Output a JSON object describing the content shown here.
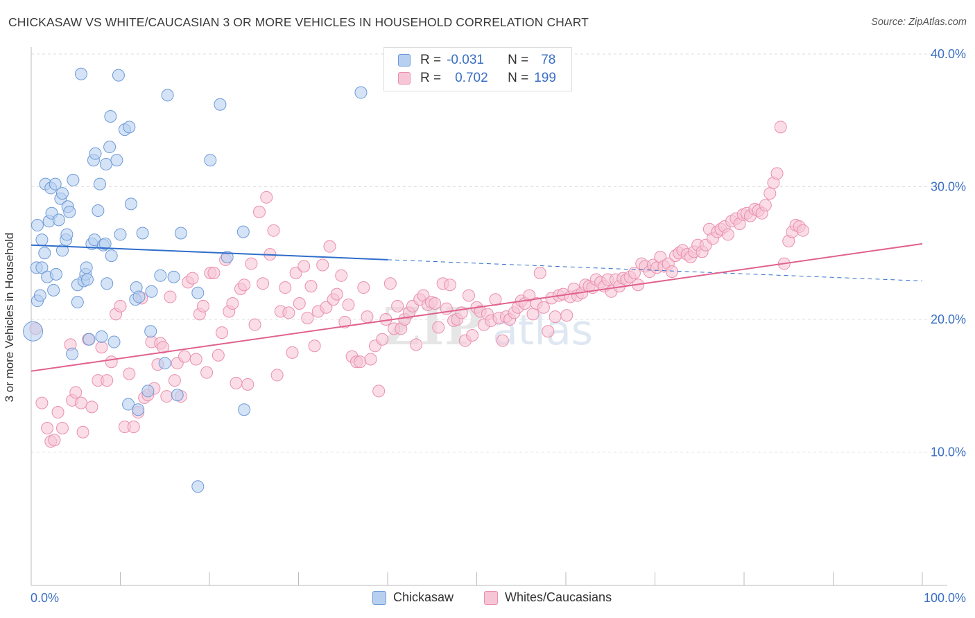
{
  "title": "CHICKASAW VS WHITE/CAUCASIAN 3 OR MORE VEHICLES IN HOUSEHOLD CORRELATION CHART",
  "source": "Source: ZipAtlas.com",
  "legend": {
    "r_label": "R =",
    "n_label": "N =",
    "rows": [
      {
        "r": "-0.031",
        "n": "78"
      },
      {
        "r": "0.702",
        "n": "199"
      }
    ]
  },
  "colors": {
    "blue_fill": "#b8d0f0",
    "blue_stroke": "#6e9ad8",
    "blue_line": "#2f6ecb",
    "pink_fill": "#f6c6d6",
    "pink_stroke": "#ea8fae",
    "pink_line": "#e0618f",
    "tick_text": "#3a6fc4",
    "grid": "#dddddd"
  },
  "chart_data": {
    "type": "scatter",
    "title": "CHICKASAW VS WHITE/CAUCASIAN 3 OR MORE VEHICLES IN HOUSEHOLD CORRELATION CHART",
    "xlabel": "",
    "ylabel": "3 or more Vehicles in Household",
    "xlim": [
      0,
      100
    ],
    "ylim": [
      0,
      41
    ],
    "x_tick_labels": [
      "0.0%",
      "100.0%"
    ],
    "y_ticks": [
      10,
      20,
      30,
      40
    ],
    "y_tick_labels": [
      "10.0%",
      "20.0%",
      "30.0%",
      "40.0%"
    ],
    "grid": true,
    "legend_position": "top-center",
    "series": [
      {
        "name": "Chickasaw",
        "r": -0.031,
        "n": 78,
        "trend": {
          "x": [
            0,
            40,
            100
          ],
          "y": [
            25.6,
            24.5,
            22.9
          ],
          "solid_until": 40
        },
        "points": [
          [
            0.2,
            19.1
          ],
          [
            0.6,
            23.9
          ],
          [
            0.7,
            27.1
          ],
          [
            0.7,
            21.4
          ],
          [
            1.0,
            21.8
          ],
          [
            1.2,
            23.9
          ],
          [
            1.2,
            26.0
          ],
          [
            1.5,
            25.0
          ],
          [
            1.6,
            30.2
          ],
          [
            1.8,
            23.2
          ],
          [
            2.0,
            27.4
          ],
          [
            2.2,
            29.9
          ],
          [
            2.3,
            28.0
          ],
          [
            2.5,
            22.2
          ],
          [
            2.7,
            30.2
          ],
          [
            2.8,
            23.4
          ],
          [
            3.1,
            27.5
          ],
          [
            3.3,
            29.1
          ],
          [
            3.5,
            25.2
          ],
          [
            3.5,
            29.5
          ],
          [
            3.9,
            26.0
          ],
          [
            4.0,
            26.4
          ],
          [
            4.1,
            28.5
          ],
          [
            4.3,
            28.1
          ],
          [
            4.6,
            17.4
          ],
          [
            4.7,
            30.5
          ],
          [
            5.2,
            22.6
          ],
          [
            5.2,
            21.3
          ],
          [
            5.6,
            38.5
          ],
          [
            5.9,
            22.9
          ],
          [
            6.1,
            23.4
          ],
          [
            6.2,
            23.9
          ],
          [
            6.3,
            23.0
          ],
          [
            6.5,
            18.5
          ],
          [
            6.8,
            25.7
          ],
          [
            7.0,
            32.0
          ],
          [
            7.1,
            26.0
          ],
          [
            7.2,
            32.5
          ],
          [
            7.5,
            28.2
          ],
          [
            7.7,
            30.2
          ],
          [
            7.9,
            18.7
          ],
          [
            8.1,
            25.6
          ],
          [
            8.3,
            25.7
          ],
          [
            8.4,
            31.7
          ],
          [
            8.5,
            22.7
          ],
          [
            8.8,
            33.0
          ],
          [
            8.9,
            35.3
          ],
          [
            9.0,
            24.8
          ],
          [
            9.3,
            18.3
          ],
          [
            9.6,
            32.0
          ],
          [
            9.8,
            38.4
          ],
          [
            10.0,
            26.4
          ],
          [
            10.5,
            34.3
          ],
          [
            10.9,
            13.6
          ],
          [
            11.0,
            34.5
          ],
          [
            11.2,
            28.7
          ],
          [
            11.7,
            21.5
          ],
          [
            11.8,
            22.4
          ],
          [
            12.1,
            21.7
          ],
          [
            12.0,
            13.2
          ],
          [
            12.5,
            26.5
          ],
          [
            13.1,
            14.6
          ],
          [
            13.4,
            19.1
          ],
          [
            13.5,
            22.1
          ],
          [
            14.5,
            23.3
          ],
          [
            15.0,
            16.7
          ],
          [
            15.3,
            36.9
          ],
          [
            16.0,
            23.2
          ],
          [
            16.4,
            14.3
          ],
          [
            16.8,
            26.5
          ],
          [
            18.7,
            7.4
          ],
          [
            18.7,
            22.0
          ],
          [
            20.1,
            32.0
          ],
          [
            21.2,
            36.2
          ],
          [
            22.0,
            24.7
          ],
          [
            23.8,
            26.6
          ],
          [
            23.9,
            13.2
          ],
          [
            37.0,
            37.1
          ]
        ]
      },
      {
        "name": "Whites/Caucasians",
        "r": 0.702,
        "n": 199,
        "trend": {
          "x": [
            0,
            100
          ],
          "y": [
            16.1,
            25.7
          ]
        },
        "points": [
          [
            0.5,
            19.3
          ],
          [
            1.2,
            13.7
          ],
          [
            1.8,
            11.8
          ],
          [
            2.2,
            10.8
          ],
          [
            2.6,
            10.9
          ],
          [
            3.0,
            13.0
          ],
          [
            3.5,
            11.8
          ],
          [
            4.4,
            18.1
          ],
          [
            4.6,
            13.9
          ],
          [
            5.0,
            14.5
          ],
          [
            5.6,
            13.7
          ],
          [
            5.8,
            11.5
          ],
          [
            6.4,
            18.5
          ],
          [
            6.8,
            13.4
          ],
          [
            7.5,
            15.4
          ],
          [
            7.9,
            17.9
          ],
          [
            8.5,
            15.4
          ],
          [
            9.0,
            16.8
          ],
          [
            9.5,
            20.4
          ],
          [
            10.0,
            21.0
          ],
          [
            10.5,
            11.9
          ],
          [
            11.0,
            15.9
          ],
          [
            11.5,
            11.9
          ],
          [
            12.0,
            13.0
          ],
          [
            12.4,
            21.6
          ],
          [
            12.7,
            14.1
          ],
          [
            13.1,
            14.3
          ],
          [
            13.5,
            18.3
          ],
          [
            13.8,
            14.8
          ],
          [
            14.2,
            16.6
          ],
          [
            14.5,
            18.2
          ],
          [
            14.8,
            17.9
          ],
          [
            15.2,
            14.2
          ],
          [
            15.6,
            21.7
          ],
          [
            16.1,
            15.4
          ],
          [
            16.4,
            16.7
          ],
          [
            16.8,
            14.2
          ],
          [
            17.2,
            17.2
          ],
          [
            17.6,
            22.8
          ],
          [
            18.1,
            23.1
          ],
          [
            18.5,
            17.0
          ],
          [
            18.9,
            20.4
          ],
          [
            19.3,
            21.0
          ],
          [
            19.7,
            16.0
          ],
          [
            20.1,
            23.5
          ],
          [
            20.5,
            23.5
          ],
          [
            21.0,
            17.3
          ],
          [
            21.4,
            19.0
          ],
          [
            21.8,
            24.5
          ],
          [
            22.2,
            20.6
          ],
          [
            22.6,
            21.2
          ],
          [
            23.0,
            15.2
          ],
          [
            23.5,
            22.3
          ],
          [
            23.9,
            22.6
          ],
          [
            24.3,
            15.1
          ],
          [
            24.7,
            24.2
          ],
          [
            25.1,
            19.6
          ],
          [
            25.6,
            28.1
          ],
          [
            26.0,
            22.7
          ],
          [
            26.4,
            29.2
          ],
          [
            26.8,
            24.9
          ],
          [
            27.2,
            26.7
          ],
          [
            27.6,
            15.8
          ],
          [
            28.0,
            20.6
          ],
          [
            28.5,
            22.4
          ],
          [
            28.9,
            20.5
          ],
          [
            29.3,
            17.5
          ],
          [
            29.7,
            23.5
          ],
          [
            30.1,
            21.2
          ],
          [
            30.6,
            24.0
          ],
          [
            31.0,
            20.1
          ],
          [
            31.4,
            22.5
          ],
          [
            31.8,
            18.0
          ],
          [
            32.2,
            20.6
          ],
          [
            32.7,
            24.1
          ],
          [
            33.1,
            20.9
          ],
          [
            33.5,
            25.5
          ],
          [
            33.9,
            21.5
          ],
          [
            34.3,
            21.9
          ],
          [
            34.8,
            23.3
          ],
          [
            35.2,
            19.8
          ],
          [
            35.6,
            21.1
          ],
          [
            36.0,
            17.2
          ],
          [
            36.5,
            16.8
          ],
          [
            36.9,
            16.8
          ],
          [
            37.3,
            22.4
          ],
          [
            37.7,
            20.2
          ],
          [
            38.1,
            17.0
          ],
          [
            38.6,
            18.0
          ],
          [
            39.0,
            14.6
          ],
          [
            39.4,
            18.5
          ],
          [
            39.8,
            20.0
          ],
          [
            40.3,
            22.7
          ],
          [
            40.7,
            19.3
          ],
          [
            41.1,
            21.0
          ],
          [
            41.5,
            19.3
          ],
          [
            41.9,
            20.0
          ],
          [
            42.4,
            20.5
          ],
          [
            42.8,
            21.0
          ],
          [
            43.2,
            18.1
          ],
          [
            43.6,
            21.5
          ],
          [
            44.0,
            21.8
          ],
          [
            44.5,
            21.1
          ],
          [
            44.9,
            21.3
          ],
          [
            45.3,
            21.2
          ],
          [
            45.7,
            19.4
          ],
          [
            46.2,
            22.7
          ],
          [
            46.6,
            20.8
          ],
          [
            47.0,
            22.6
          ],
          [
            47.4,
            19.9
          ],
          [
            47.8,
            20.0
          ],
          [
            48.3,
            20.5
          ],
          [
            48.7,
            18.4
          ],
          [
            49.1,
            21.8
          ],
          [
            49.5,
            18.8
          ],
          [
            50.0,
            20.9
          ],
          [
            50.4,
            20.6
          ],
          [
            50.8,
            19.6
          ],
          [
            51.2,
            20.4
          ],
          [
            51.6,
            19.9
          ],
          [
            52.1,
            21.5
          ],
          [
            52.5,
            20.1
          ],
          [
            52.9,
            18.4
          ],
          [
            53.3,
            20.2
          ],
          [
            53.7,
            20.0
          ],
          [
            54.2,
            20.5
          ],
          [
            54.6,
            20.9
          ],
          [
            55.0,
            21.4
          ],
          [
            55.4,
            21.2
          ],
          [
            55.9,
            21.8
          ],
          [
            56.3,
            20.4
          ],
          [
            56.7,
            21.2
          ],
          [
            57.1,
            23.5
          ],
          [
            57.5,
            20.9
          ],
          [
            58.0,
            19.1
          ],
          [
            58.4,
            21.6
          ],
          [
            58.8,
            20.2
          ],
          [
            59.2,
            21.8
          ],
          [
            59.7,
            21.9
          ],
          [
            60.1,
            20.3
          ],
          [
            60.5,
            21.7
          ],
          [
            60.9,
            22.3
          ],
          [
            61.3,
            21.8
          ],
          [
            61.8,
            22.0
          ],
          [
            62.2,
            22.6
          ],
          [
            62.6,
            22.5
          ],
          [
            63.0,
            22.4
          ],
          [
            63.4,
            23.0
          ],
          [
            63.9,
            22.8
          ],
          [
            64.3,
            22.5
          ],
          [
            64.7,
            23.0
          ],
          [
            65.1,
            22.1
          ],
          [
            65.6,
            23.0
          ],
          [
            66.0,
            22.5
          ],
          [
            66.4,
            23.1
          ],
          [
            66.8,
            23.0
          ],
          [
            67.2,
            23.2
          ],
          [
            67.7,
            23.5
          ],
          [
            68.1,
            22.6
          ],
          [
            68.5,
            24.2
          ],
          [
            68.9,
            24.0
          ],
          [
            69.4,
            23.6
          ],
          [
            69.8,
            24.1
          ],
          [
            70.2,
            23.9
          ],
          [
            70.6,
            24.7
          ],
          [
            71.0,
            24.0
          ],
          [
            71.5,
            24.2
          ],
          [
            71.9,
            23.6
          ],
          [
            72.3,
            24.8
          ],
          [
            72.7,
            25.0
          ],
          [
            73.1,
            25.2
          ],
          [
            73.6,
            24.9
          ],
          [
            74.0,
            24.7
          ],
          [
            74.4,
            25.1
          ],
          [
            74.8,
            25.6
          ],
          [
            75.3,
            25.1
          ],
          [
            75.7,
            25.6
          ],
          [
            76.1,
            26.8
          ],
          [
            76.5,
            26.1
          ],
          [
            77.0,
            26.6
          ],
          [
            77.4,
            26.8
          ],
          [
            77.8,
            27.0
          ],
          [
            78.2,
            26.4
          ],
          [
            78.6,
            27.4
          ],
          [
            79.1,
            27.6
          ],
          [
            79.5,
            27.2
          ],
          [
            79.9,
            27.9
          ],
          [
            80.3,
            28.0
          ],
          [
            80.7,
            27.8
          ],
          [
            81.2,
            28.3
          ],
          [
            81.6,
            28.2
          ],
          [
            82.0,
            28.0
          ],
          [
            82.4,
            28.6
          ],
          [
            82.9,
            29.5
          ],
          [
            83.3,
            30.3
          ],
          [
            83.7,
            31.0
          ],
          [
            84.1,
            34.5
          ],
          [
            84.5,
            24.2
          ],
          [
            85.0,
            25.9
          ],
          [
            85.4,
            26.6
          ],
          [
            85.8,
            27.1
          ],
          [
            86.2,
            27.0
          ],
          [
            86.6,
            26.7
          ]
        ]
      }
    ]
  },
  "bottom_legend": [
    {
      "label": "Chickasaw"
    },
    {
      "label": "Whites/Caucasians"
    }
  ]
}
